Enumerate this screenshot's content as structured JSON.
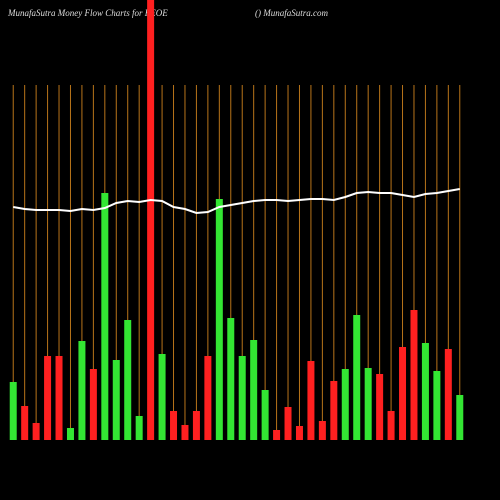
{
  "chart_data": {
    "type": "bar",
    "title": "MunafaSutra  Money Flow  Charts for FEOE",
    "subtitle": "() MunafaSutra.com",
    "categories": [
      null,
      null,
      null,
      null,
      null,
      null,
      null,
      null,
      null,
      null,
      null,
      null,
      null,
      null,
      null,
      null,
      null,
      null,
      null,
      null,
      null,
      null,
      null,
      null,
      null,
      null,
      null,
      null,
      null,
      null,
      null,
      null,
      null,
      null,
      null,
      null,
      null,
      null,
      null,
      null
    ],
    "values": [
      58,
      34,
      17,
      84,
      84,
      12,
      99,
      71,
      247,
      80,
      120,
      24,
      440,
      86,
      29,
      15,
      29,
      84,
      241,
      122,
      84,
      100,
      50,
      10,
      33,
      14,
      79,
      19,
      59,
      71,
      125,
      72,
      66,
      29,
      93,
      130,
      97,
      69,
      91,
      45
    ],
    "bar_colors": [
      "#33e633",
      "#ff2020",
      "#ff2020",
      "#ff2020",
      "#ff2020",
      "#33e633",
      "#33e633",
      "#ff2020",
      "#33e633",
      "#33e633",
      "#33e633",
      "#33e633",
      "#ff2020",
      "#33e633",
      "#ff2020",
      "#ff2020",
      "#ff2020",
      "#ff2020",
      "#33e633",
      "#33e633",
      "#33e633",
      "#33e633",
      "#33e633",
      "#ff2020",
      "#ff2020",
      "#ff2020",
      "#ff2020",
      "#ff2020",
      "#ff2020",
      "#33e633",
      "#33e633",
      "#33e633",
      "#ff2020",
      "#ff2020",
      "#ff2020",
      "#ff2020",
      "#33e633",
      "#33e633",
      "#ff2020",
      "#33e633"
    ],
    "line": {
      "color": "#ffffff",
      "values": [
        233,
        231,
        230,
        230,
        230,
        229,
        231,
        230,
        232,
        237,
        239,
        238,
        240,
        239,
        233,
        231,
        227,
        228,
        233,
        235,
        237,
        239,
        240,
        240,
        239,
        240,
        241,
        241,
        240,
        243,
        247,
        248,
        247,
        247,
        245,
        243,
        246,
        247,
        249,
        251
      ]
    },
    "ylim": [
      0,
      440
    ],
    "grid": true,
    "grid_color": "#b8741a"
  }
}
